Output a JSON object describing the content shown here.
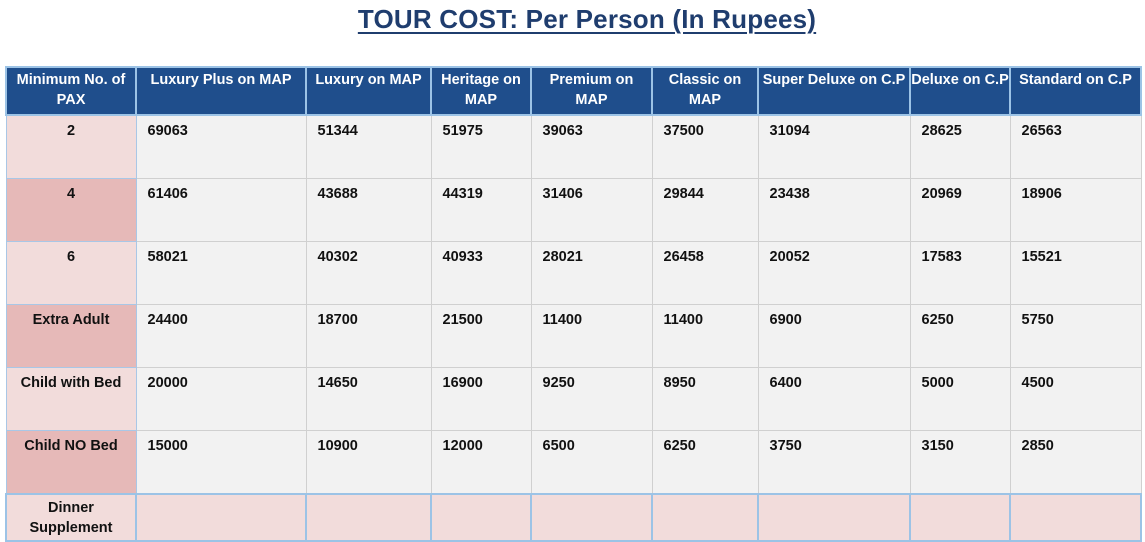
{
  "title": "TOUR COST: Per Person (In Rupees)",
  "table": {
    "headers": [
      "Minimum No. of PAX",
      "Luxury Plus on MAP",
      "Luxury on MAP",
      "Heritage on MAP",
      "Premium on MAP",
      "Classic on MAP",
      "Super Deluxe on C.P",
      "Deluxe on C.P",
      "Standard on C.P"
    ],
    "rows": [
      {
        "label": "2",
        "values": [
          "69063",
          "51344",
          "51975",
          "39063",
          "37500",
          "31094",
          "28625",
          "26563"
        ]
      },
      {
        "label": "4",
        "values": [
          "61406",
          "43688",
          "44319",
          "31406",
          "29844",
          "23438",
          "20969",
          "18906"
        ]
      },
      {
        "label": "6",
        "values": [
          "58021",
          "40302",
          "40933",
          "28021",
          "26458",
          "20052",
          "17583",
          "15521"
        ]
      },
      {
        "label": "Extra Adult",
        "values": [
          "24400",
          "18700",
          "21500",
          "11400",
          "11400",
          "6900",
          "6250",
          "5750"
        ]
      },
      {
        "label": "Child with Bed",
        "values": [
          "20000",
          "14650",
          "16900",
          "9250",
          "8950",
          "6400",
          "5000",
          "4500"
        ]
      },
      {
        "label": "Child NO Bed",
        "values": [
          "15000",
          "10900",
          "12000",
          "6500",
          "6250",
          "3750",
          "3150",
          "2850"
        ]
      },
      {
        "label": "Dinner Supplement",
        "values": [
          "",
          "",
          "",
          "",
          "",
          "",
          "",
          ""
        ]
      }
    ]
  },
  "colors": {
    "title": "#1f3d6e",
    "header_bg": "#1f4e8c",
    "header_border": "#9cc3e6",
    "row_label_light": "#f2dcdb",
    "row_label_dark": "#e6b9b8",
    "cell_bg": "#f2f2f2"
  }
}
